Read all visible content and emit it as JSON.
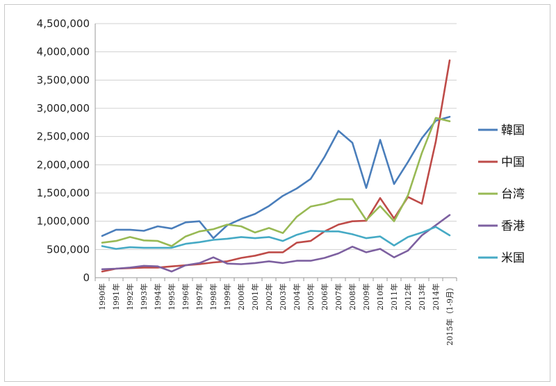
{
  "chart_data": {
    "type": "line",
    "title": "",
    "xlabel": "",
    "ylabel": "",
    "ylim": [
      0,
      4500000
    ],
    "yticks": [
      0,
      500000,
      1000000,
      1500000,
      2000000,
      2500000,
      3000000,
      3500000,
      4000000,
      4500000
    ],
    "ytick_labels": [
      "0",
      "500,000",
      "1,000,000",
      "1,500,000",
      "2,000,000",
      "2,500,000",
      "3,000,000",
      "3,500,000",
      "4,000,000",
      "4,500,000"
    ],
    "grid": "horizontal",
    "legend_position": "right",
    "categories": [
      "1990年",
      "1991年",
      "1992年",
      "1993年",
      "1994年",
      "1995年",
      "1996年",
      "1997年",
      "1998年",
      "1999年",
      "2000年",
      "2001年",
      "2002年",
      "2003年",
      "2004年",
      "2005年",
      "2006年",
      "2007年",
      "2008年",
      "2009年",
      "2010年",
      "2011年",
      "2012年",
      "2013年",
      "2014年",
      "2015年（1-9月）"
    ],
    "series": [
      {
        "name": "韓国",
        "color": "#4a7ebb",
        "values": [
          740000,
          850000,
          850000,
          830000,
          910000,
          870000,
          980000,
          1000000,
          700000,
          930000,
          1040000,
          1130000,
          1270000,
          1450000,
          1580000,
          1750000,
          2140000,
          2600000,
          2390000,
          1590000,
          2440000,
          1660000,
          2050000,
          2470000,
          2780000,
          2850000
        ]
      },
      {
        "name": "中国",
        "color": "#be4b48",
        "values": [
          110000,
          160000,
          170000,
          180000,
          180000,
          200000,
          220000,
          240000,
          270000,
          290000,
          350000,
          390000,
          450000,
          450000,
          620000,
          650000,
          820000,
          940000,
          1000000,
          1010000,
          1410000,
          1050000,
          1430000,
          1310000,
          2410000,
          3850000
        ]
      },
      {
        "name": "台湾",
        "color": "#98b954",
        "values": [
          620000,
          650000,
          720000,
          660000,
          650000,
          560000,
          730000,
          820000,
          860000,
          940000,
          910000,
          800000,
          880000,
          790000,
          1080000,
          1260000,
          1310000,
          1390000,
          1390000,
          1020000,
          1270000,
          1000000,
          1460000,
          2210000,
          2830000,
          2770000
        ]
      },
      {
        "name": "香港",
        "color": "#7d60a0",
        "values": [
          150000,
          160000,
          180000,
          210000,
          200000,
          110000,
          220000,
          260000,
          360000,
          250000,
          240000,
          260000,
          290000,
          260000,
          300000,
          300000,
          350000,
          430000,
          550000,
          450000,
          510000,
          360000,
          480000,
          750000,
          930000,
          1110000
        ]
      },
      {
        "name": "米国",
        "color": "#46aac5",
        "values": [
          560000,
          510000,
          540000,
          530000,
          530000,
          530000,
          600000,
          630000,
          670000,
          690000,
          720000,
          700000,
          720000,
          650000,
          760000,
          830000,
          820000,
          820000,
          770000,
          700000,
          730000,
          570000,
          720000,
          800000,
          900000,
          750000
        ]
      }
    ]
  }
}
